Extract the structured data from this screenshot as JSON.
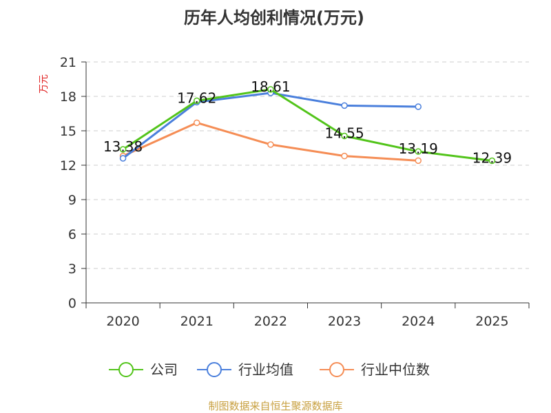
{
  "chart_data": {
    "type": "line",
    "title": "历年人均创利情况(万元)",
    "ylabel": "万元",
    "xlabel": "",
    "categories": [
      "2020",
      "2021",
      "2022",
      "2023",
      "2024",
      "2025"
    ],
    "ylim": [
      0,
      21
    ],
    "yticks": [
      0,
      3,
      6,
      9,
      12,
      15,
      18,
      21
    ],
    "grid": true,
    "legend_position": "bottom",
    "series": [
      {
        "name": "公司",
        "color": "#52c41a",
        "values": [
          13.38,
          17.62,
          18.61,
          14.55,
          13.19,
          12.39
        ],
        "labels": [
          "13.38",
          "17.62",
          "18.61",
          "14.55",
          "13.19",
          "12.39"
        ]
      },
      {
        "name": "行业均值",
        "color": "#4a7fdc",
        "values": [
          12.6,
          17.5,
          18.3,
          17.2,
          17.1,
          null
        ]
      },
      {
        "name": "行业中位数",
        "color": "#f58d55",
        "values": [
          12.8,
          15.7,
          13.8,
          12.8,
          12.4,
          null
        ]
      }
    ]
  },
  "source": "制图数据来自恒生聚源数据库"
}
